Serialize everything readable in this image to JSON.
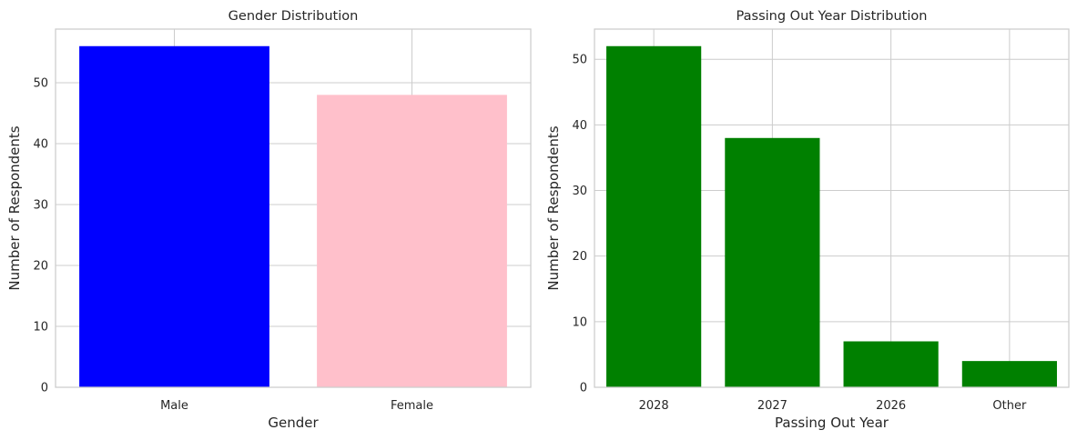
{
  "chart_data": [
    {
      "type": "bar",
      "title": "Gender Distribution",
      "xlabel": "Gender",
      "ylabel": "Number of Respondents",
      "categories": [
        "Male",
        "Female"
      ],
      "values": [
        56,
        48
      ],
      "colors": [
        "#0000ff",
        "#ffc0cb"
      ],
      "ylim": [
        0,
        58.8
      ],
      "yticks": [
        0,
        10,
        20,
        30,
        40,
        50
      ],
      "grid": true,
      "legend": "none"
    },
    {
      "type": "bar",
      "title": "Passing Out Year Distribution",
      "xlabel": "Passing Out Year",
      "ylabel": "Number of Respondents",
      "categories": [
        "2028",
        "2027",
        "2026",
        "Other"
      ],
      "values": [
        52,
        38,
        7,
        4
      ],
      "colors": [
        "#008000",
        "#008000",
        "#008000",
        "#008000"
      ],
      "ylim": [
        0,
        54.6
      ],
      "yticks": [
        0,
        10,
        20,
        30,
        40,
        50
      ],
      "grid": true,
      "legend": "none"
    }
  ],
  "style": {
    "grid_color": "#cccccc",
    "spine_color": "#cccccc",
    "text_color": "#262626",
    "background": "#ffffff"
  }
}
